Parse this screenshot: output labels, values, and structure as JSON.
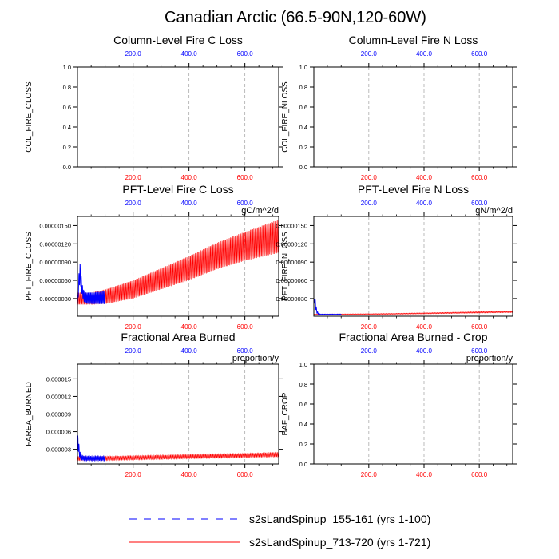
{
  "figure_title": "Canadian Arctic (66.5-90N,120-60W)",
  "colors": {
    "blue": "#0000ff",
    "red": "#ff0000",
    "grid": "#aaaaaa"
  },
  "legend": [
    {
      "label": "s2sLandSpinup_155-161 (yrs 1-100)",
      "color": "#0000ff",
      "style": "dashed"
    },
    {
      "label": "s2sLandSpinup_713-720 (yrs 1-721)",
      "color": "#ff0000",
      "style": "solid"
    }
  ],
  "chart_data": [
    {
      "type": "line",
      "title": "Column-Level Fire C Loss",
      "ylabel": "COL_FIRE_CLOSS",
      "units": "",
      "xlim": [
        1,
        721
      ],
      "ylim": [
        0,
        1
      ],
      "yticks": [
        "0.0",
        "0.2",
        "0.4",
        "0.6",
        "0.8",
        "1.0"
      ],
      "top_xticks": [
        "200.0",
        "400.0",
        "600.0"
      ],
      "bottom_xticks": [
        "200.0",
        "400.0",
        "600.0"
      ],
      "grid": "vertical dashed",
      "series": []
    },
    {
      "type": "line",
      "title": "Column-Level Fire N Loss",
      "ylabel": "COL_FIRE_NLOSS",
      "units": "",
      "xlim": [
        1,
        721
      ],
      "ylim": [
        0,
        1
      ],
      "yticks": [
        "0.0",
        "0.2",
        "0.4",
        "0.6",
        "0.8",
        "1.0"
      ],
      "top_xticks": [
        "200.0",
        "400.0",
        "600.0"
      ],
      "bottom_xticks": [
        "200.0",
        "400.0",
        "600.0"
      ],
      "grid": "vertical dashed",
      "series": []
    },
    {
      "type": "line",
      "title": "PFT-Level Fire C Loss",
      "ylabel": "PFT_FIRE_CLOSS",
      "units": "gC/m^2/d",
      "xlim": [
        1,
        721
      ],
      "ylim": [
        1e-08,
        1.65e-06
      ],
      "yticks": [
        "0.00000030",
        "0.00000060",
        "0.00000090",
        "0.00000120",
        "0.00000150"
      ],
      "ytick_values": [
        3e-07,
        6e-07,
        9e-07,
        1.2e-06,
        1.5e-06
      ],
      "top_xticks": [
        "200.0",
        "400.0",
        "600.0"
      ],
      "bottom_xticks": [
        "200.0",
        "400.0",
        "600.0"
      ],
      "grid": "vertical dashed",
      "series": [
        {
          "name": "s2sLandSpinup_155-161 (yrs 1-100)",
          "color": "#0000ff",
          "x": [
            1,
            5,
            10,
            15,
            20,
            25,
            30,
            40,
            50,
            60,
            70,
            80,
            90,
            100
          ],
          "min": [
            1e-07,
            4e-07,
            5.8e-07,
            4.2e-07,
            3e-07,
            2.4e-07,
            2.2e-07,
            2.1e-07,
            2.1e-07,
            2.1e-07,
            2.1e-07,
            2.1e-07,
            2.1e-07,
            2.1e-07
          ],
          "max": [
            2e-07,
            6.5e-07,
            9e-07,
            6.5e-07,
            4.8e-07,
            4.2e-07,
            4e-07,
            4e-07,
            4e-07,
            4e-07,
            4.1e-07,
            4.1e-07,
            4.2e-07,
            4.2e-07
          ]
        },
        {
          "name": "s2sLandSpinup_713-720 (yrs 1-721)",
          "color": "#ff0000",
          "x": [
            1,
            50,
            100,
            200,
            300,
            400,
            500,
            600,
            721
          ],
          "min": [
            2e-07,
            2e-07,
            2.1e-07,
            3e-07,
            4.5e-07,
            6e-07,
            7.8e-07,
            9.2e-07,
            1.05e-06
          ],
          "max": [
            4e-07,
            4e-07,
            4.5e-07,
            6e-07,
            8e-07,
            1e-06,
            1.22e-06,
            1.4e-06,
            1.6e-06
          ]
        }
      ]
    },
    {
      "type": "line",
      "title": "PFT-Level Fire N Loss",
      "ylabel": "PFT_FIRE_NLOSS",
      "units": "gN/m^2/d",
      "xlim": [
        1,
        721
      ],
      "ylim": [
        1e-08,
        1.65e-06
      ],
      "yticks": [
        "0.00000030",
        "0.00000060",
        "0.00000090",
        "0.00000120",
        "0.00000150"
      ],
      "ytick_values": [
        3e-07,
        6e-07,
        9e-07,
        1.2e-06,
        1.5e-06
      ],
      "top_xticks": [
        "200.0",
        "400.0",
        "600.0"
      ],
      "bottom_xticks": [
        "200.0",
        "400.0",
        "600.0"
      ],
      "grid": "vertical dashed",
      "series": [
        {
          "name": "s2sLandSpinup_155-161 (yrs 1-100)",
          "color": "#0000ff",
          "x": [
            1,
            4,
            8,
            12,
            18,
            25,
            40,
            60,
            80,
            100
          ],
          "min": [
            1.5e-07,
            2.2e-07,
            1.2e-07,
            6e-08,
            4e-08,
            3.5e-08,
            3.5e-08,
            3.5e-08,
            3.5e-08,
            3.5e-08
          ],
          "max": [
            2.5e-07,
            3.6e-07,
            2.2e-07,
            1e-07,
            6e-08,
            4.5e-08,
            4.5e-08,
            4.5e-08,
            4.5e-08,
            4.5e-08
          ]
        },
        {
          "name": "s2sLandSpinup_713-720 (yrs 1-721)",
          "color": "#ff0000",
          "x": [
            1,
            100,
            200,
            300,
            400,
            500,
            600,
            721
          ],
          "min": [
            3.5e-08,
            3.5e-08,
            3.8e-08,
            4.2e-08,
            4.8e-08,
            5.5e-08,
            6.2e-08,
            7e-08
          ],
          "max": [
            4.5e-08,
            4.8e-08,
            5.2e-08,
            5.8e-08,
            6.6e-08,
            7.5e-08,
            8.5e-08,
            9.5e-08
          ]
        }
      ]
    },
    {
      "type": "line",
      "title": "Fractional Area Burned",
      "ylabel": "FAREA_BURNED",
      "units": "proportion/y",
      "xlim": [
        1,
        721
      ],
      "ylim": [
        5e-07,
        1.75e-05
      ],
      "yticks": [
        "0.000003",
        "0.000006",
        "0.000009",
        "0.000012",
        "0.000015"
      ],
      "ytick_values": [
        3e-06,
        6e-06,
        9e-06,
        1.2e-05,
        1.5e-05
      ],
      "top_xticks": [
        "200.0",
        "400.0",
        "600.0"
      ],
      "bottom_xticks": [
        "200.0",
        "400.0",
        "600.0"
      ],
      "grid": "vertical dashed",
      "series": [
        {
          "name": "s2sLandSpinup_155-161 (yrs 1-100)",
          "color": "#0000ff",
          "x": [
            1,
            3,
            6,
            10,
            15,
            20,
            30,
            50,
            70,
            100
          ],
          "min": [
            2.5e-06,
            3e-06,
            2e-06,
            1.4e-06,
            1.2e-06,
            1.1e-06,
            1.1e-06,
            1.1e-06,
            1.1e-06,
            1.1e-06
          ],
          "max": [
            4.5e-06,
            6e-06,
            4e-06,
            2.6e-06,
            2.1e-06,
            1.9e-06,
            1.8e-06,
            1.8e-06,
            1.8e-06,
            1.8e-06
          ]
        },
        {
          "name": "s2sLandSpinup_713-720 (yrs 1-721)",
          "color": "#ff0000",
          "x": [
            1,
            100,
            200,
            300,
            400,
            500,
            600,
            721
          ],
          "min": [
            1.1e-06,
            1.1e-06,
            1.2e-06,
            1.3e-06,
            1.4e-06,
            1.5e-06,
            1.6e-06,
            1.7e-06
          ],
          "max": [
            1.8e-06,
            1.8e-06,
            1.9e-06,
            2e-06,
            2.1e-06,
            2.2e-06,
            2.3e-06,
            2.5e-06
          ]
        }
      ]
    },
    {
      "type": "line",
      "title": "Fractional Area Burned - Crop",
      "ylabel": "BAF_CROP",
      "units": "proportion/y",
      "xlim": [
        1,
        721
      ],
      "ylim": [
        0,
        1
      ],
      "yticks": [
        "0.0",
        "0.2",
        "0.4",
        "0.6",
        "0.8",
        "1.0"
      ],
      "top_xticks": [
        "200.0",
        "400.0",
        "600.0"
      ],
      "bottom_xticks": [
        "200.0",
        "400.0",
        "600.0"
      ],
      "grid": "vertical dashed",
      "series": []
    }
  ]
}
